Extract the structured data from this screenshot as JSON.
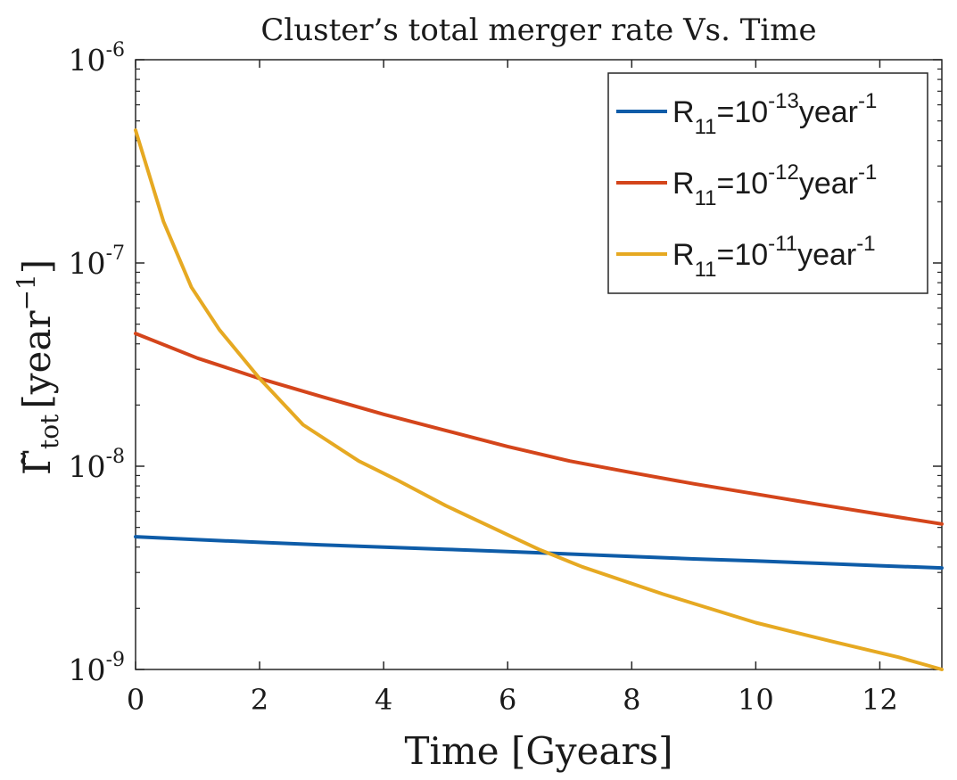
{
  "chart_data": {
    "type": "line",
    "title": "Cluster’s total merger rate Vs. Time",
    "xlabel": "Time [Gyears]",
    "ylabel": {
      "symbol": "Γ̃",
      "subscript": "tot",
      "unit_open": "[year",
      "unit_exp": "−1",
      "unit_close": "]"
    },
    "x_scale": "linear",
    "y_scale": "log",
    "xlim": [
      0,
      13
    ],
    "ylim": [
      1e-09,
      1e-06
    ],
    "x_ticks": [
      0,
      2,
      4,
      6,
      8,
      10,
      12
    ],
    "x_tick_labels": [
      "0",
      "2",
      "4",
      "6",
      "8",
      "10",
      "12"
    ],
    "y_ticks": [
      {
        "value": 1e-09,
        "base": "10",
        "exp": "-9"
      },
      {
        "value": 1e-08,
        "base": "10",
        "exp": "-8"
      },
      {
        "value": 1e-07,
        "base": "10",
        "exp": "-7"
      },
      {
        "value": 1e-06,
        "base": "10",
        "exp": "-6"
      }
    ],
    "grid": false,
    "legend_position": "top-right",
    "series": [
      {
        "legend": {
          "base": "R",
          "sub": "11",
          "mid": "=10",
          "exp": "-13",
          "unit": "year",
          "unit_exp": "-1"
        },
        "color": "#0e5ca8",
        "x": [
          0,
          1,
          2,
          3,
          4,
          5,
          6,
          7,
          8,
          9,
          10,
          11,
          12,
          13
        ],
        "y": [
          4.5e-09,
          4.35e-09,
          4.22e-09,
          4.1e-09,
          4e-09,
          3.9e-09,
          3.8e-09,
          3.7e-09,
          3.6e-09,
          3.5e-09,
          3.42e-09,
          3.33e-09,
          3.24e-09,
          3.16e-09
        ]
      },
      {
        "legend": {
          "base": "R",
          "sub": "11",
          "mid": "=10",
          "exp": "-12",
          "unit": "year",
          "unit_exp": "-1"
        },
        "color": "#d4451b",
        "x": [
          0,
          1,
          2,
          3,
          4,
          5,
          6,
          7,
          8,
          9,
          10,
          11,
          12,
          13
        ],
        "y": [
          4.5e-08,
          3.4e-08,
          2.7e-08,
          2.2e-08,
          1.8e-08,
          1.5e-08,
          1.25e-08,
          1.06e-08,
          9.3e-09,
          8.2e-09,
          7.3e-09,
          6.5e-09,
          5.8e-09,
          5.2e-09
        ]
      },
      {
        "legend": {
          "base": "R",
          "sub": "11",
          "mid": "=10",
          "exp": "-11",
          "unit": "year",
          "unit_exp": "-1"
        },
        "color": "#e6a922",
        "x": [
          0,
          0.45,
          0.9,
          1.35,
          2.0,
          2.7,
          3.6,
          4.2,
          5.0,
          6.0,
          6.5,
          7.2,
          8.5,
          10.0,
          11.2,
          12.3,
          13.0
        ],
        "y": [
          4.5e-07,
          1.6e-07,
          7.6e-08,
          4.7e-08,
          2.7e-08,
          1.6e-08,
          1.06e-08,
          8.6e-09,
          6.4e-09,
          4.6e-09,
          3.9e-09,
          3.2e-09,
          2.35e-09,
          1.7e-09,
          1.38e-09,
          1.15e-09,
          1e-09
        ]
      }
    ]
  }
}
